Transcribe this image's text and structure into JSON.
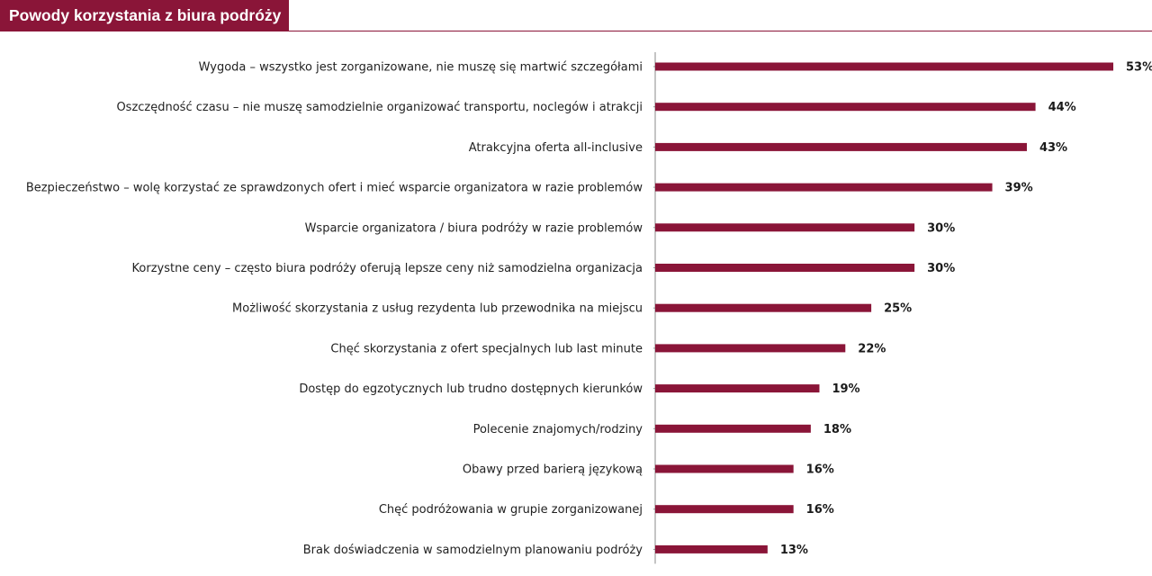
{
  "header": {
    "title": "Powody korzystania z biura podróży"
  },
  "colors": {
    "bar": "#8a1538",
    "axis": "#8a8a8a",
    "title_background": "#8a1538",
    "title_text": "#ffffff"
  },
  "chart_data": {
    "type": "bar",
    "orientation": "horizontal",
    "title": "Powody korzystania z biura podróży",
    "categories": [
      "Wygoda – wszystko jest zorganizowane, nie muszę się martwić szczegółami",
      "Oszczędność czasu – nie muszę samodzielnie organizować transportu, noclegów i atrakcji",
      "Atrakcyjna oferta all-inclusive",
      "Bezpieczeństwo – wolę korzystać ze sprawdzonych ofert i mieć wsparcie organizatora w razie problemów",
      "Wsparcie organizatora / biura podróży w razie problemów",
      "Korzystne ceny – często biura podróży oferują lepsze ceny niż samodzielna organizacja",
      "Możliwość skorzystania z usług rezydenta lub przewodnika na miejscu",
      "Chęć skorzystania z ofert specjalnych lub last minute",
      "Dostęp do egzotycznych lub trudno dostępnych kierunków",
      "Polecenie znajomych/rodziny",
      "Obawy przed barierą językową",
      "Chęć podróżowania w grupie zorganizowanej",
      "Brak doświadczenia w samodzielnym planowaniu podróży"
    ],
    "values": [
      53,
      44,
      43,
      39,
      30,
      30,
      25,
      22,
      19,
      18,
      16,
      16,
      13
    ],
    "value_labels": [
      "53%",
      "44%",
      "43%",
      "39%",
      "30%",
      "30%",
      "25%",
      "22%",
      "19%",
      "18%",
      "16%",
      "16%",
      "13%"
    ],
    "unit": "%",
    "xlim": [
      0,
      53
    ],
    "grid": false,
    "legend": "none"
  }
}
